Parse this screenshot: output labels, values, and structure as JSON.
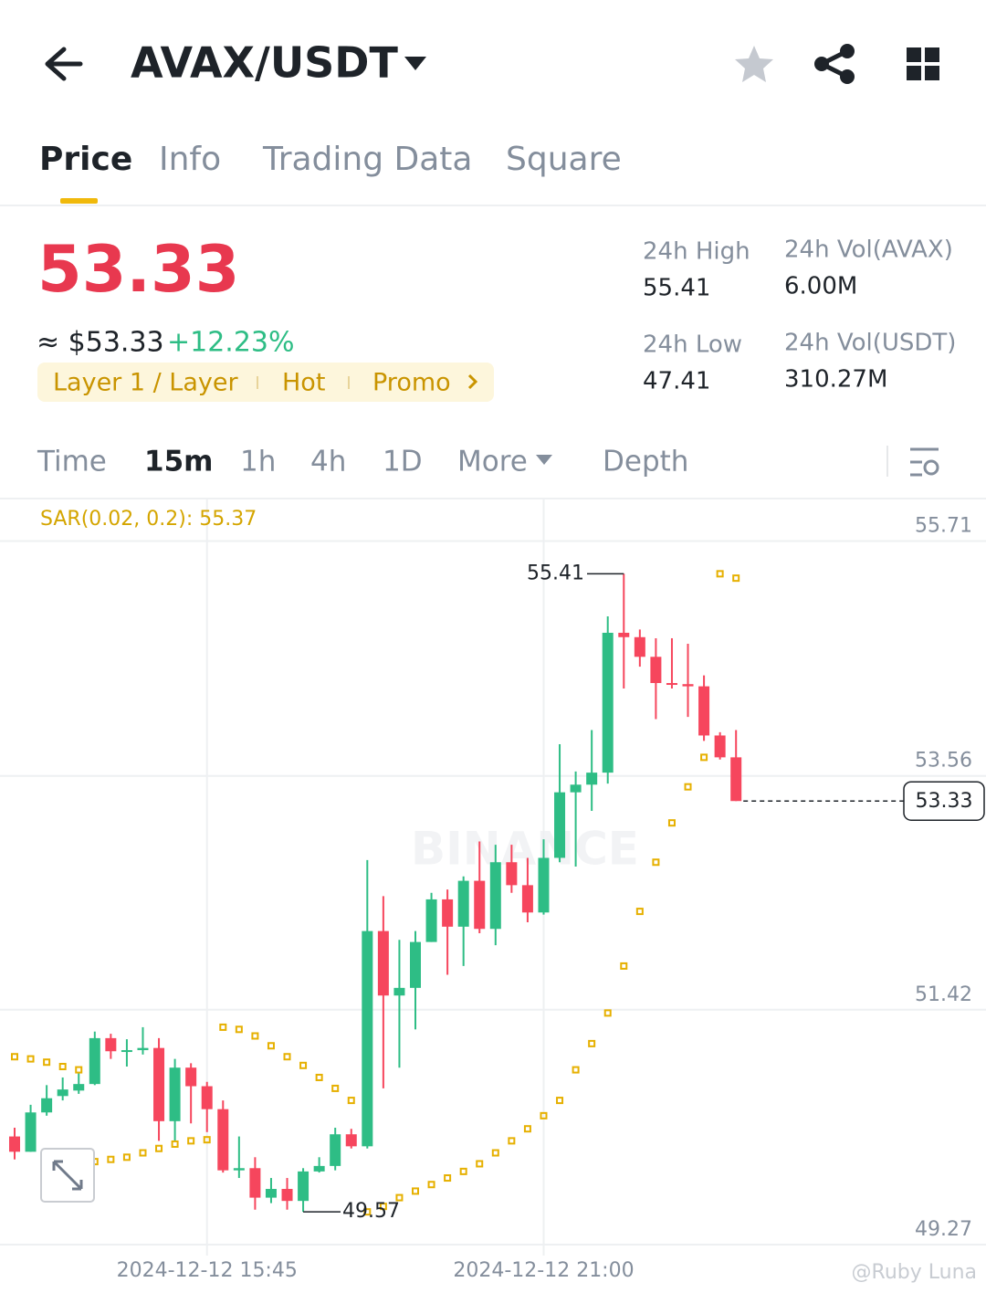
{
  "header": {
    "pair": "AVAX/USDT"
  },
  "tabs": [
    "Price",
    "Info",
    "Trading Data",
    "Square"
  ],
  "ticker": {
    "price": "53.33",
    "fiat": "≈ $53.33",
    "change": "+12.23%",
    "tags": [
      "Layer 1 / Layer",
      "Hot",
      "Promo"
    ],
    "stats": [
      {
        "label": "24h High",
        "value": "55.41"
      },
      {
        "label": "24h Vol(AVAX)",
        "value": "6.00M"
      },
      {
        "label": "24h Low",
        "value": "47.41"
      },
      {
        "label": "24h Vol(USDT)",
        "value": "310.27M"
      }
    ]
  },
  "intervals": [
    "Time",
    "15m",
    "1h",
    "4h",
    "1D",
    "More",
    "Depth"
  ],
  "chart_data": {
    "type": "candlestick",
    "indicator_label": "SAR(0.02, 0.2): 55.37",
    "watermark": "BINANCE",
    "credit": "@Ruby Luna",
    "up_color": "#2ebd85",
    "down_color": "#f6465d",
    "sar_color": "#e6b000",
    "grid": true,
    "categories": [
      null,
      null,
      null,
      null,
      null,
      null,
      null,
      null,
      null,
      null,
      null,
      null,
      "2024-12-12 15:45",
      null,
      null,
      null,
      null,
      null,
      null,
      null,
      null,
      null,
      null,
      null,
      null,
      null,
      null,
      null,
      null,
      null,
      null,
      null,
      null,
      "2024-12-12 21:00",
      null,
      null,
      null,
      null,
      null,
      null,
      null,
      null,
      null,
      null,
      null,
      null
    ],
    "open": [
      50.26,
      50.12,
      50.48,
      50.63,
      50.68,
      50.74,
      51.16,
      51.04,
      51.05,
      51.07,
      50.4,
      50.89,
      50.72,
      50.51,
      49.95,
      49.97,
      49.7,
      49.78,
      49.67,
      49.94,
      49.99,
      50.28,
      50.17,
      52.14,
      51.55,
      51.62,
      52.04,
      52.43,
      52.18,
      52.6,
      52.16,
      52.77,
      52.56,
      52.31,
      52.81,
      53.41,
      53.48,
      53.59,
      54.87,
      54.83,
      54.65,
      54.41,
      54.4,
      54.38,
      53.93,
      53.73
    ],
    "high": [
      50.34,
      50.55,
      50.73,
      50.8,
      50.84,
      51.22,
      51.2,
      51.15,
      51.26,
      51.16,
      50.97,
      50.93,
      50.76,
      50.59,
      50.26,
      50.07,
      49.88,
      49.88,
      49.97,
      50.07,
      50.34,
      50.33,
      52.79,
      52.46,
      52.06,
      52.14,
      52.49,
      52.52,
      52.64,
      52.96,
      52.93,
      52.93,
      52.81,
      52.98,
      53.85,
      53.6,
      53.98,
      55.02,
      55.41,
      54.9,
      54.82,
      54.82,
      54.77,
      54.48,
      53.96,
      53.98
    ],
    "low": [
      50.05,
      50.12,
      50.45,
      50.59,
      50.65,
      50.73,
      50.97,
      50.9,
      51.01,
      50.22,
      50.22,
      50.38,
      50.3,
      49.93,
      49.88,
      49.59,
      49.65,
      49.59,
      49.57,
      49.93,
      49.95,
      50.15,
      50.15,
      50.7,
      50.89,
      51.24,
      52.04,
      51.74,
      51.82,
      52.12,
      52.01,
      52.49,
      52.22,
      52.29,
      52.77,
      52.73,
      53.24,
      53.49,
      54.36,
      54.56,
      54.08,
      54.36,
      54.1,
      53.88,
      53.71,
      53.33
    ],
    "close": [
      50.12,
      50.48,
      50.61,
      50.69,
      50.74,
      51.16,
      51.04,
      51.05,
      51.07,
      50.4,
      50.89,
      50.72,
      50.51,
      49.95,
      49.97,
      49.7,
      49.78,
      49.67,
      49.94,
      49.99,
      50.28,
      50.17,
      52.14,
      51.55,
      51.62,
      52.04,
      52.43,
      52.18,
      52.6,
      52.16,
      52.77,
      52.56,
      52.31,
      52.81,
      53.41,
      53.48,
      53.59,
      54.87,
      54.83,
      54.65,
      54.41,
      54.4,
      54.38,
      53.93,
      53.73,
      53.33
    ],
    "sar": [
      50.99,
      50.97,
      50.94,
      50.9,
      50.87,
      50.03,
      50.05,
      50.07,
      50.11,
      50.15,
      50.19,
      50.22,
      50.23,
      51.26,
      51.24,
      51.18,
      51.09,
      50.99,
      50.91,
      50.8,
      50.7,
      50.59,
      49.57,
      49.62,
      49.7,
      49.76,
      49.82,
      49.88,
      49.94,
      50.01,
      50.11,
      50.22,
      50.33,
      50.45,
      50.59,
      50.87,
      51.11,
      51.39,
      51.82,
      52.32,
      52.77,
      53.13,
      53.46,
      53.73,
      55.41,
      55.37
    ],
    "ylim": [
      49.17,
      56.09
    ],
    "yticks": [
      55.71,
      53.56,
      51.42,
      49.27
    ]
  }
}
